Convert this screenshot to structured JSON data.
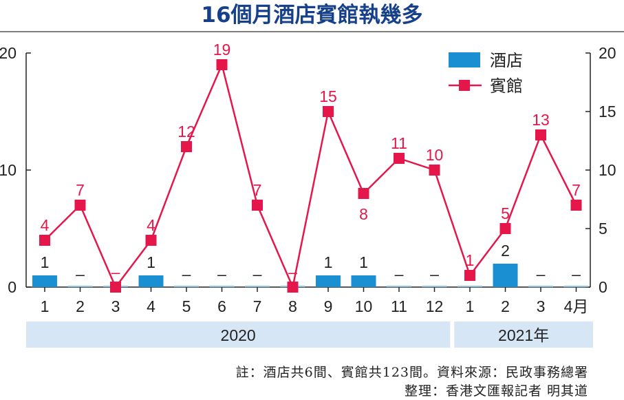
{
  "chart_data": {
    "type": "bar+line",
    "title": "16個月酒店賓館執幾多",
    "categories": [
      "1",
      "2",
      "3",
      "4",
      "5",
      "6",
      "7",
      "8",
      "9",
      "10",
      "11",
      "12",
      "1",
      "2",
      "3",
      "4月"
    ],
    "years": [
      {
        "label": "2020",
        "count": 12
      },
      {
        "label": "2021年",
        "count": 4
      }
    ],
    "series": [
      {
        "name": "酒店",
        "type": "bar",
        "color": "#1a8fd1",
        "values": [
          1,
          0,
          0,
          1,
          0,
          0,
          0,
          0,
          1,
          1,
          0,
          0,
          0,
          2,
          0,
          0
        ],
        "labels": [
          "1",
          "–",
          "",
          "1",
          "–",
          "–",
          "–",
          "",
          "1",
          "1",
          "–",
          "–",
          "–",
          "2",
          "–",
          "–"
        ]
      },
      {
        "name": "賓館",
        "type": "line",
        "color": "#e5174a",
        "values": [
          4,
          7,
          0,
          4,
          12,
          19,
          7,
          0,
          15,
          8,
          11,
          10,
          1,
          5,
          13,
          7
        ],
        "labels": [
          "4",
          "7",
          "–",
          "4",
          "12",
          "19",
          "7",
          "–",
          "15",
          "8",
          "11",
          "10",
          "1",
          "5",
          "13",
          "7"
        ]
      }
    ],
    "left_axis": {
      "ticks": [
        "0",
        "10",
        "20"
      ],
      "ylim": [
        0,
        20
      ]
    },
    "right_axis": {
      "ticks": [
        "0",
        "5",
        "10",
        "15",
        "20"
      ],
      "ylim": [
        0,
        20
      ]
    },
    "legend": {
      "position": "top-right"
    },
    "grid": false
  },
  "notes": {
    "source": "註：酒店共6間、賓館共123間。資料來源：民政事務總署",
    "credit": "整理：香港文匯報記者 明其道"
  }
}
